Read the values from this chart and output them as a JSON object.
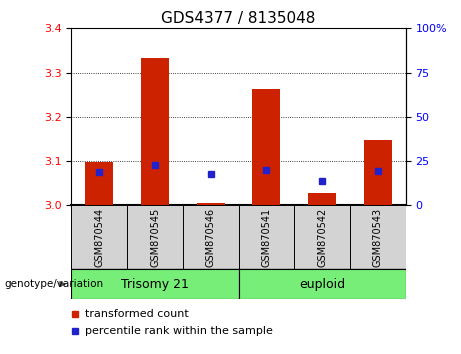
{
  "title": "GDS4377 / 8135048",
  "samples": [
    "GSM870544",
    "GSM870545",
    "GSM870546",
    "GSM870541",
    "GSM870542",
    "GSM870543"
  ],
  "red_values": [
    3.097,
    3.332,
    3.005,
    3.262,
    3.028,
    3.148
  ],
  "blue_values_pct": [
    19.0,
    22.5,
    17.5,
    20.0,
    14.0,
    19.5
  ],
  "ylim_left": [
    3.0,
    3.4
  ],
  "ylim_right": [
    0,
    100
  ],
  "yticks_left": [
    3.0,
    3.1,
    3.2,
    3.3,
    3.4
  ],
  "yticks_right": [
    0,
    25,
    50,
    75,
    100
  ],
  "grid_lines": [
    3.1,
    3.2,
    3.3
  ],
  "bar_width": 0.5,
  "bar_color": "#CC2200",
  "dot_color": "#2222CC",
  "title_fontsize": 11,
  "tick_fontsize": 8,
  "legend_fontsize": 8,
  "group_label_fontsize": 9,
  "group1_label": "Trisomy 21",
  "group2_label": "euploid",
  "group_color": "#77EE77",
  "genotype_label": "genotype/variation",
  "legend1": "transformed count",
  "legend2": "percentile rank within the sample"
}
